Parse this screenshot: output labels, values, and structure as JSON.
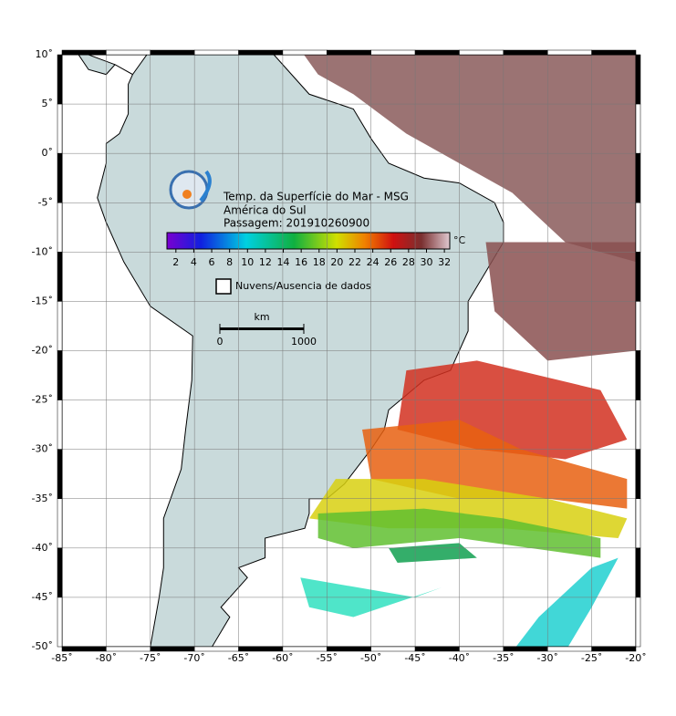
{
  "header": {
    "title": "Temp. da Superfície do Mar - MSG",
    "region": "América do Sul",
    "pass": "Passagem: 201910260900"
  },
  "colorbar": {
    "lim": [
      1,
      32.6
    ],
    "ticks": [
      2,
      4,
      6,
      8,
      10,
      12,
      14,
      16,
      18,
      20,
      22,
      24,
      26,
      28,
      30,
      32
    ],
    "unit": "°C"
  },
  "legend": {
    "clouds": "Nuvens/Ausencia de dados"
  },
  "scale_bar": {
    "unit": "km",
    "lim": [
      0,
      1000
    ],
    "ticks": [
      0,
      1000
    ]
  },
  "map": {
    "lonlim": [
      -85,
      -20
    ],
    "latlim": [
      -50,
      10
    ],
    "lonticks": [
      {
        "value": -85,
        "label": "-85˚"
      },
      {
        "value": -80,
        "label": "-80˚"
      },
      {
        "value": -75,
        "label": "-75˚"
      },
      {
        "value": -70,
        "label": "-70˚"
      },
      {
        "value": -65,
        "label": "-65˚"
      },
      {
        "value": -60,
        "label": "-60˚"
      },
      {
        "value": -55,
        "label": "-55˚"
      },
      {
        "value": -50,
        "label": "-50˚"
      },
      {
        "value": -45,
        "label": "-45˚"
      },
      {
        "value": -40,
        "label": "-40˚"
      },
      {
        "value": -35,
        "label": "-35˚"
      },
      {
        "value": -30,
        "label": "-30˚"
      },
      {
        "value": -25,
        "label": "-25˚"
      },
      {
        "value": -20,
        "label": "-20˚"
      }
    ],
    "latticks": [
      {
        "value": 10,
        "label": "10˚"
      },
      {
        "value": 5,
        "label": "5˚"
      },
      {
        "value": 0,
        "label": "0˚"
      },
      {
        "value": -5,
        "label": "-5˚"
      },
      {
        "value": -10,
        "label": "-10˚"
      },
      {
        "value": -15,
        "label": "-15˚"
      },
      {
        "value": -20,
        "label": "-20˚"
      },
      {
        "value": -25,
        "label": "-25˚"
      },
      {
        "value": -30,
        "label": "-30˚"
      },
      {
        "value": -35,
        "label": "-35˚"
      },
      {
        "value": -40,
        "label": "-40˚"
      },
      {
        "value": -45,
        "label": "-45˚"
      },
      {
        "value": -50,
        "label": "-50˚"
      }
    ]
  }
}
